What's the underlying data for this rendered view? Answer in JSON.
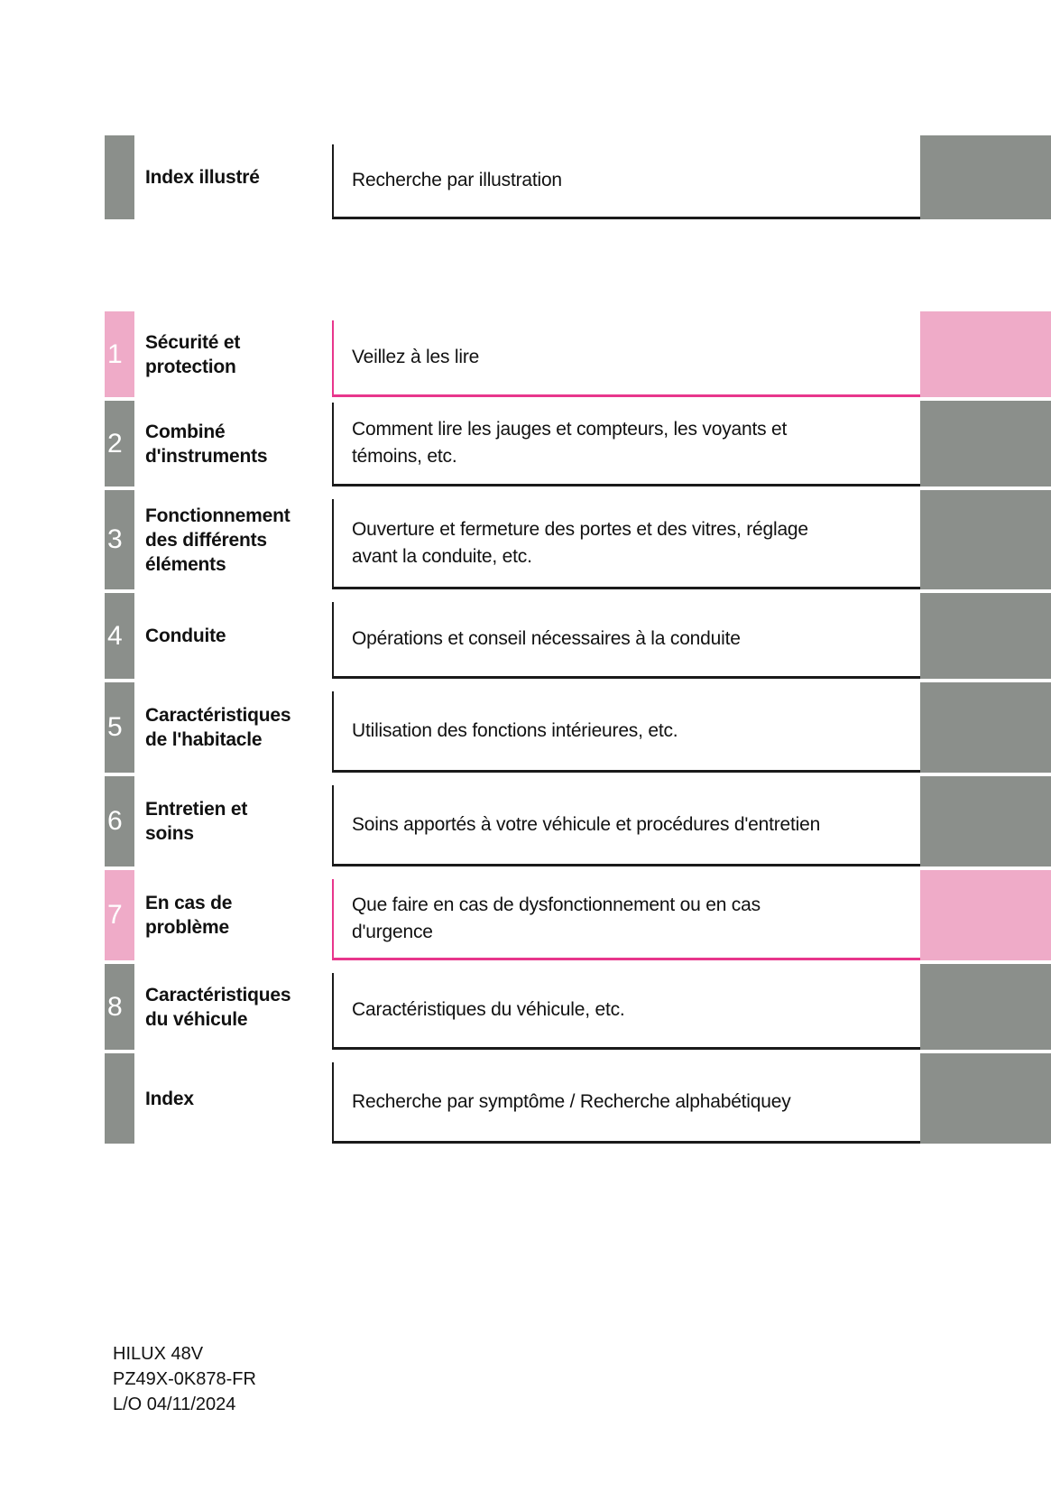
{
  "colors": {
    "tab_gray": "#8b8f8b",
    "tab_pink": "#efabc8",
    "pink_border": "#e8368c",
    "dark_border": "#1a1a1a"
  },
  "toc": {
    "rows": [
      {
        "number": "",
        "title": "Index illustré",
        "description": "Recherche par illustration",
        "accent": "gray"
      },
      {
        "number": "1",
        "title": "Sécurité et\nprotection",
        "description": "Veillez à les lire",
        "accent": "pink"
      },
      {
        "number": "2",
        "title": "Combiné\nd'instruments",
        "description": "Comment lire les jauges et compteurs, les voyants et\ntémoins, etc.",
        "accent": "gray"
      },
      {
        "number": "3",
        "title": "Fonctionnement\ndes différents\néléments",
        "description": "Ouverture et fermeture des portes et des vitres, réglage\navant la conduite, etc.",
        "accent": "gray"
      },
      {
        "number": "4",
        "title": "Conduite",
        "description": "Opérations et conseil nécessaires à la conduite",
        "accent": "gray"
      },
      {
        "number": "5",
        "title": "Caractéristiques\nde l'habitacle",
        "description": "Utilisation des fonctions intérieures, etc.",
        "accent": "gray"
      },
      {
        "number": "6",
        "title": "Entretien et\nsoins",
        "description": "Soins apportés à votre véhicule et procédures d'entretien",
        "accent": "gray"
      },
      {
        "number": "7",
        "title": "En cas de\nproblème",
        "description": "Que faire en cas de dysfonctionnement ou en cas\nd'urgence",
        "accent": "pink"
      },
      {
        "number": "8",
        "title": "Caractéristiques\ndu véhicule",
        "description": "Caractéristiques du véhicule, etc.",
        "accent": "gray"
      },
      {
        "number": "",
        "title": "Index",
        "description": "Recherche par symptôme / Recherche alphabétiquey",
        "accent": "gray"
      }
    ]
  },
  "footer": {
    "lines": [
      "HILUX 48V",
      "PZ49X-0K878-FR",
      "L/O 04/11/2024"
    ]
  }
}
